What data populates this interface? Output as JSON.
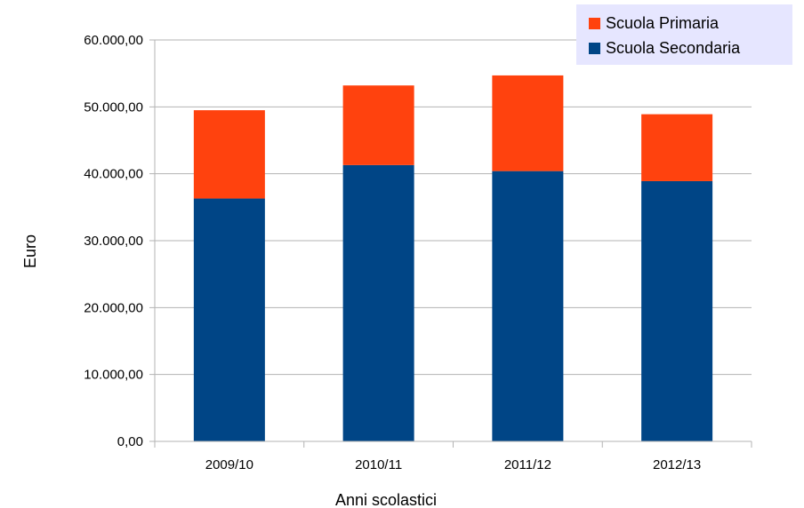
{
  "chart_data": {
    "type": "bar",
    "stacked": true,
    "categories": [
      "2009/10",
      "2010/11",
      "2011/12",
      "2012/13"
    ],
    "series": [
      {
        "name": "Scuola Secondaria",
        "color": "#004586",
        "values": [
          36300,
          41300,
          40400,
          38900
        ]
      },
      {
        "name": "Scuola Primaria",
        "color": "#ff420e",
        "values": [
          13200,
          11900,
          14300,
          10000
        ]
      }
    ],
    "title": "",
    "xlabel": "Anni scolastici",
    "ylabel": "Euro",
    "ylim": [
      0,
      60000
    ],
    "yticks": [
      0,
      10000,
      20000,
      30000,
      40000,
      50000,
      60000
    ],
    "ytick_labels": [
      "0,00",
      "10.000,00",
      "20.000,00",
      "30.000,00",
      "40.000,00",
      "50.000,00",
      "60.000,00"
    ],
    "grid": "horizontal",
    "legend": {
      "position": "top-right",
      "background": "#e6e6ff",
      "items": [
        {
          "label": "Scuola Primaria",
          "color": "#ff420e"
        },
        {
          "label": "Scuola Secondaria",
          "color": "#004586"
        }
      ]
    }
  }
}
